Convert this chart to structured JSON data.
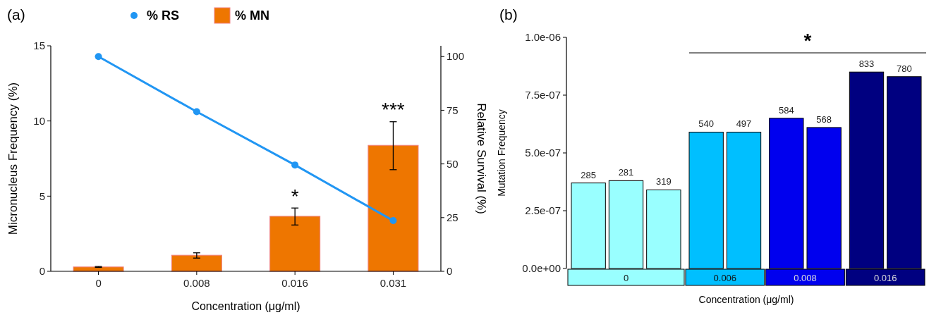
{
  "chart_data": [
    {
      "type": "bar",
      "title": "(a)",
      "xlabel": "Concentration (μg/ml)",
      "ylabel": "Micronucleus Frequency (%)",
      "y2label": "Relative Survival (%)",
      "categories": [
        "0",
        "0.008",
        "0.016",
        "0.031"
      ],
      "series": [
        {
          "name": "% RS",
          "type": "line",
          "axis": "y2",
          "color": "#2196f3",
          "values": [
            100,
            74.3,
            49.5,
            23.6
          ],
          "marker": "circle"
        },
        {
          "name": "% MN",
          "type": "bar",
          "color": "#ee7600",
          "values": [
            0.29,
            1.07,
            3.66,
            8.38
          ],
          "errors": [
            0.03,
            [
              0.88,
              1.23
            ],
            [
              3.08,
              4.21
            ],
            [
              6.76,
              9.95
            ]
          ]
        }
      ],
      "ylim": [
        0,
        15
      ],
      "yticks": [
        0,
        5,
        10,
        15
      ],
      "y2lim": [
        0,
        105
      ],
      "y2ticks": [
        0,
        25,
        50,
        75,
        100
      ],
      "legend": "top",
      "grid": false,
      "annotations": [
        {
          "text": "*",
          "x": "0.016",
          "y": 4.21
        },
        {
          "text": "***",
          "x": "0.031",
          "y": 9.95
        }
      ]
    },
    {
      "type": "bar",
      "title": "(b)",
      "xlabel": "Concentration (μg/ml)",
      "ylabel": "Mutation Frequency",
      "categories": [
        null,
        null,
        null,
        null,
        null,
        null,
        null,
        null,
        null
      ],
      "values": [
        3.7e-07,
        3.8e-07,
        3.4e-07,
        5.9e-07,
        5.9e-07,
        6.5e-07,
        6.1e-07,
        8.5e-07,
        8.3e-07
      ],
      "colors": [
        "#99ffff",
        "#99ffff",
        "#99ffff",
        "#00bfff",
        "#00bfff",
        "#0000ee",
        "#0000ee",
        "#000080",
        "#000080"
      ],
      "ylim": [
        0,
        1e-06
      ],
      "yticks": [
        {
          "value": 0,
          "label": "0.0e+00"
        },
        {
          "value": 2.5e-07,
          "label": "2.5e-07"
        },
        {
          "value": 5e-07,
          "label": "5.0e-07"
        },
        {
          "value": 7.5e-07,
          "label": "7.5e-07"
        },
        {
          "value": 1e-06,
          "label": "1.0e-06"
        }
      ],
      "grid": false,
      "annotations": [
        "285",
        "281",
        "319",
        "540",
        "497",
        "584",
        "568",
        "833",
        "780",
        "0",
        "0.006",
        "0.008",
        "0.016",
        "*"
      ]
    }
  ]
}
